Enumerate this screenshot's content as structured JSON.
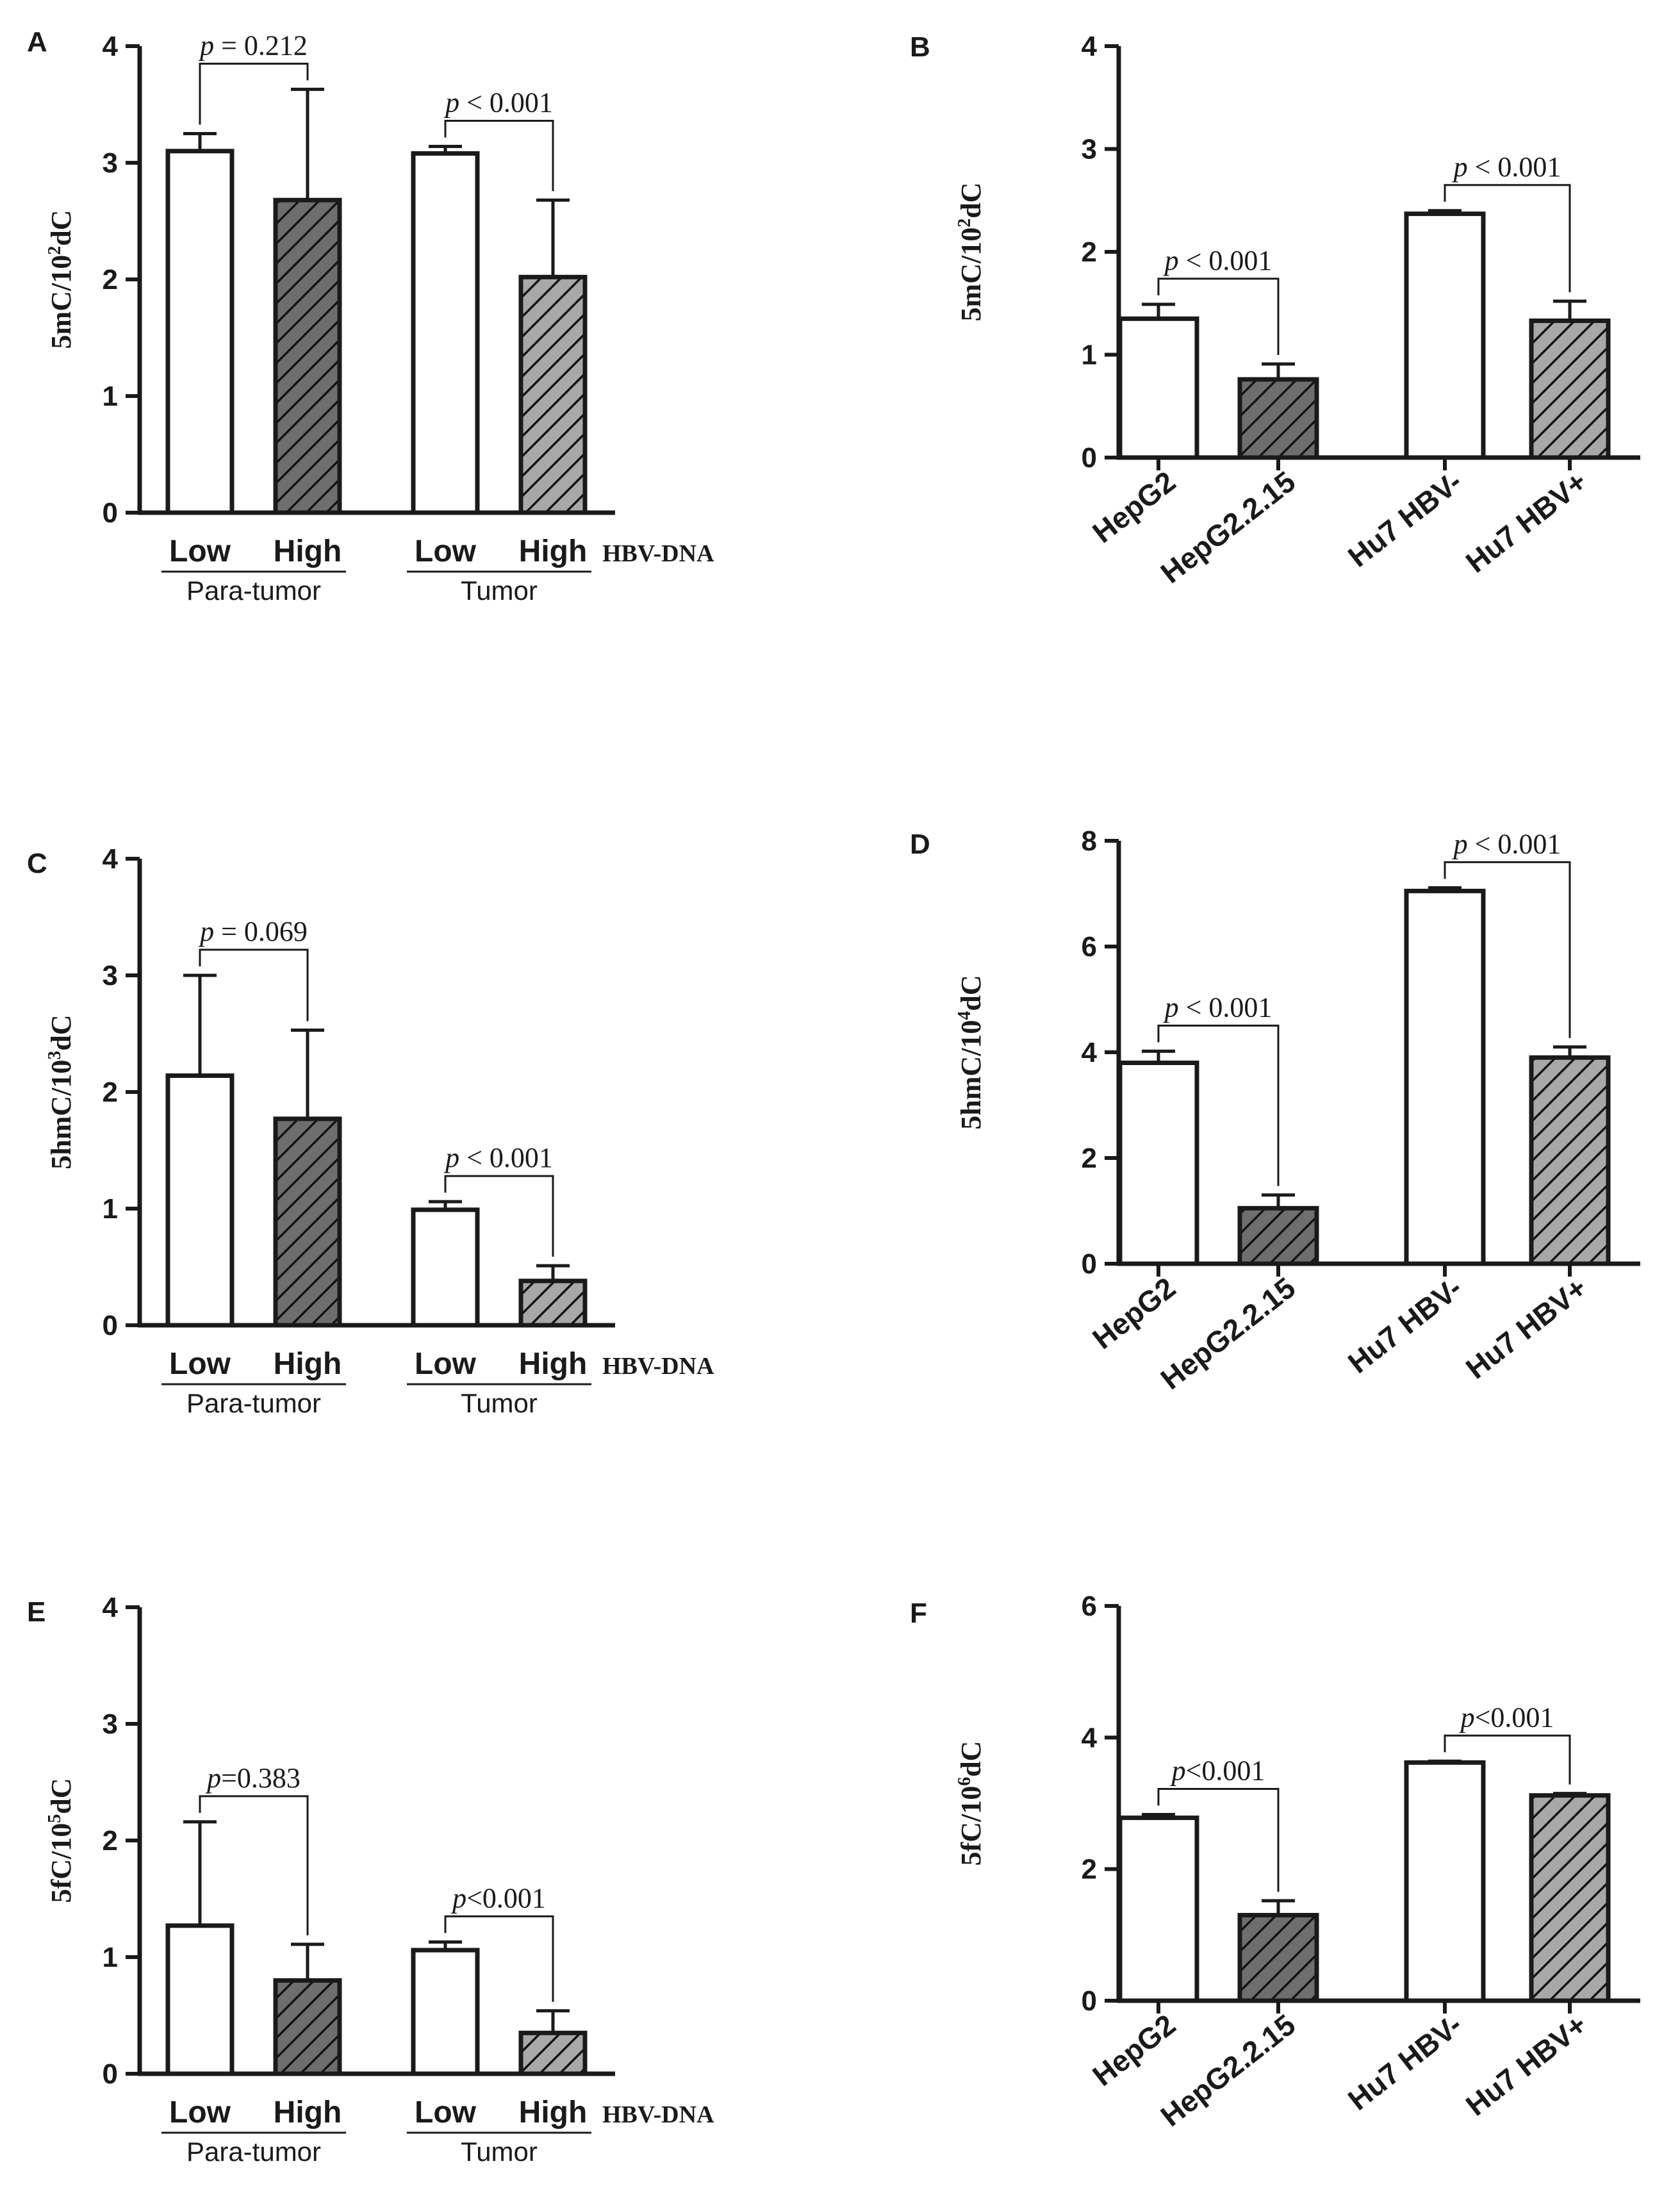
{
  "figure": {
    "colors": {
      "ink": "#1a1a1a",
      "bar_open": "#ffffff",
      "hatch_fill_left": "#6e6e6e",
      "hatch_fill_right": "#a8a8a8",
      "hatch_line": "#141414"
    }
  },
  "chart_data": [
    {
      "panel": "A",
      "type": "bar",
      "ylabel_main": "5mC/10",
      "ylabel_exp": "2",
      "ylabel_tail": "dC",
      "ylim": [
        0,
        4
      ],
      "yticks": [
        "0",
        "1",
        "2",
        "3",
        "4"
      ],
      "categories": [
        "Low",
        "High",
        "Low",
        "High"
      ],
      "groups": [
        "Para-tumor",
        "Tumor"
      ],
      "side_label": "HBV-DNA",
      "values": [
        3.1,
        2.68,
        3.08,
        2.02
      ],
      "errors": [
        0.15,
        0.95,
        0.06,
        0.66
      ],
      "patterns": [
        "open",
        "hatch-dark",
        "open",
        "hatch-light"
      ],
      "brackets": [
        {
          "italic": "p",
          "text": " = 0.212"
        },
        {
          "italic": "p",
          "text": " < 0.001"
        }
      ]
    },
    {
      "panel": "B",
      "type": "bar",
      "ylabel_main": "5mC/10",
      "ylabel_exp": "2",
      "ylabel_tail": "dC",
      "ylim": [
        0,
        4
      ],
      "yticks": [
        "0",
        "1",
        "2",
        "3",
        "4"
      ],
      "categories": [
        "HepG2",
        "HepG2.2.15",
        "Hu7 HBV-",
        "Hu7 HBV+"
      ],
      "values": [
        1.35,
        0.76,
        2.37,
        1.33
      ],
      "errors": [
        0.14,
        0.15,
        0.03,
        0.19
      ],
      "patterns": [
        "open",
        "hatch-dark",
        "open",
        "hatch-light"
      ],
      "brackets": [
        {
          "italic": "p",
          "text": " < 0.001"
        },
        {
          "italic": "p",
          "text": " < 0.001"
        }
      ]
    },
    {
      "panel": "C",
      "type": "bar",
      "ylabel_main": "5hmC/10",
      "ylabel_exp": "3",
      "ylabel_tail": "dC",
      "ylim": [
        0,
        4
      ],
      "yticks": [
        "0",
        "1",
        "2",
        "3",
        "4"
      ],
      "categories": [
        "Low",
        "High",
        "Low",
        "High"
      ],
      "groups": [
        "Para-tumor",
        "Tumor"
      ],
      "side_label": "HBV-DNA",
      "values": [
        2.14,
        1.77,
        0.99,
        0.38
      ],
      "errors": [
        0.86,
        0.76,
        0.07,
        0.13
      ],
      "patterns": [
        "open",
        "hatch-dark",
        "open",
        "hatch-light"
      ],
      "brackets": [
        {
          "italic": "p",
          "text": " = 0.069"
        },
        {
          "italic": "p",
          "text": " < 0.001"
        }
      ]
    },
    {
      "panel": "D",
      "type": "bar",
      "ylabel_main": "5hmC/10",
      "ylabel_exp": "4",
      "ylabel_tail": "dC",
      "ylim": [
        0,
        8
      ],
      "yticks": [
        "0",
        "2",
        "4",
        "6",
        "8"
      ],
      "categories": [
        "HepG2",
        "HepG2.2.15",
        "Hu7 HBV-",
        "Hu7 HBV+"
      ],
      "values": [
        3.8,
        1.05,
        7.05,
        3.9
      ],
      "errors": [
        0.22,
        0.25,
        0.06,
        0.2
      ],
      "patterns": [
        "open",
        "hatch-dark",
        "open",
        "hatch-light"
      ],
      "brackets": [
        {
          "italic": "p",
          "text": " < 0.001"
        },
        {
          "italic": "p",
          "text": " < 0.001"
        }
      ]
    },
    {
      "panel": "E",
      "type": "bar",
      "ylabel_main": "5fC/10",
      "ylabel_exp": "5",
      "ylabel_tail": "dC",
      "ylim": [
        0,
        4
      ],
      "yticks": [
        "0",
        "1",
        "2",
        "3",
        "4"
      ],
      "categories": [
        "Low",
        "High",
        "Low",
        "High"
      ],
      "groups": [
        "Para-tumor",
        "Tumor"
      ],
      "side_label": "HBV-DNA",
      "values": [
        1.27,
        0.8,
        1.06,
        0.35
      ],
      "errors": [
        0.89,
        0.31,
        0.07,
        0.19
      ],
      "patterns": [
        "open",
        "hatch-dark",
        "open",
        "hatch-light"
      ],
      "brackets": [
        {
          "italic": "p",
          "text": "=0.383"
        },
        {
          "italic": "p",
          "text": "<0.001"
        }
      ]
    },
    {
      "panel": "F",
      "type": "bar",
      "ylabel_main": "5fC/10",
      "ylabel_exp": "6",
      "ylabel_tail": "dC",
      "ylim": [
        0,
        6
      ],
      "yticks": [
        "0",
        "2",
        "4",
        "6"
      ],
      "categories": [
        "HepG2",
        "HepG2.2.15",
        "Hu7 HBV-",
        "Hu7 HBV+"
      ],
      "values": [
        2.78,
        1.3,
        3.62,
        3.12
      ],
      "errors": [
        0.05,
        0.22,
        0.02,
        0.03
      ],
      "patterns": [
        "open",
        "hatch-dark",
        "open",
        "hatch-light"
      ],
      "brackets": [
        {
          "italic": "p",
          "text": "<0.001"
        },
        {
          "italic": "p",
          "text": "<0.001"
        }
      ]
    }
  ]
}
